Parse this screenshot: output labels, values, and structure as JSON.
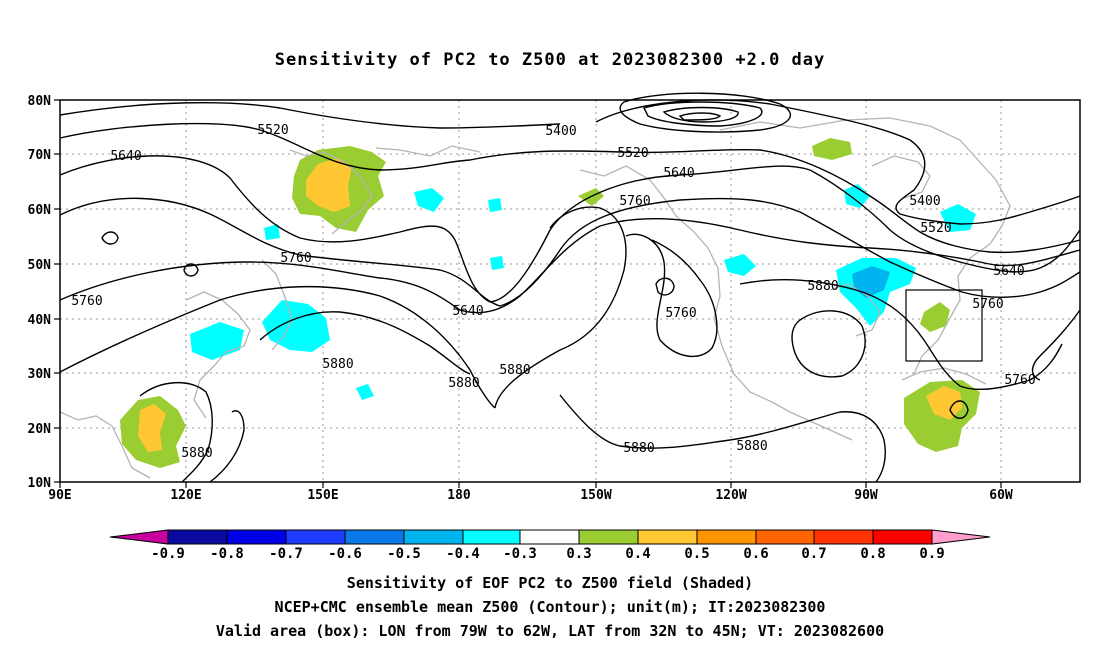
{
  "title": "Sensitivity of PC2 to Z500 at 2023082300 +2.0 day",
  "lat_ticks": [
    "80N",
    "70N",
    "60N",
    "50N",
    "40N",
    "30N",
    "20N",
    "10N"
  ],
  "lon_ticks": [
    "90E",
    "120E",
    "150E",
    "180",
    "150W",
    "120W",
    "90W",
    "60W"
  ],
  "contour_labels": [
    "5520",
    "5400",
    "5520",
    "5640",
    "5640",
    "5760",
    "5400",
    "5520",
    "5640",
    "5760",
    "5760",
    "5760",
    "5760",
    "5640",
    "5880",
    "5880",
    "5880",
    "5880",
    "5760",
    "5880",
    "5880",
    "5880"
  ],
  "colorbar": {
    "labels": [
      "-0.9",
      "-0.8",
      "-0.7",
      "-0.6",
      "-0.5",
      "-0.4",
      "-0.3",
      "0.3",
      "0.4",
      "0.5",
      "0.6",
      "0.7",
      "0.8",
      "0.9"
    ],
    "colors": [
      "#0a0aa0",
      "#0000e6",
      "#1e3cff",
      "#0a78e6",
      "#00b4f0",
      "#00ffff",
      "#ffffff",
      "#9acd32",
      "#ffc832",
      "#ff9600",
      "#ff6400",
      "#ff3200",
      "#ff0000"
    ],
    "low_arrow_color": "#c800a0",
    "high_arrow_color": "#ff9ecf"
  },
  "caption": [
    "Sensitivity of EOF PC2 to Z500 field (Shaded)",
    "NCEP+CMC ensemble mean Z500 (Contour); unit(m); IT:2023082300",
    "Valid area (box): LON from 79W to 62W, LAT from 32N to 45N; VT: 2023082600"
  ]
}
